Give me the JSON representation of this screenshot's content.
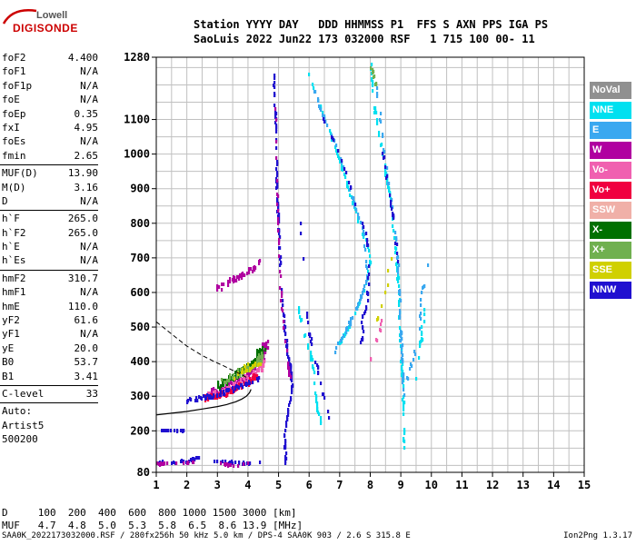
{
  "logo": {
    "top": "Lowell",
    "bottom": "DIGISONDE"
  },
  "header": {
    "line1": "Station YYYY DAY   DDD HHMMSS P1  FFS S AXN PPS IGA PS",
    "line2": "SaoLuis 2022 Jun22 173 032000 RSF   1 715 100 00- 11"
  },
  "params": [
    {
      "label": "foF2",
      "value": "4.400"
    },
    {
      "label": "foF1",
      "value": "N/A"
    },
    {
      "label": "foF1p",
      "value": "N/A"
    },
    {
      "label": "foE",
      "value": "N/A"
    },
    {
      "label": "foEp",
      "value": "0.35"
    },
    {
      "label": "fxI",
      "value": "4.95"
    },
    {
      "label": "foEs",
      "value": "N/A"
    },
    {
      "label": "fmin",
      "value": "2.65"
    },
    {
      "sep": true
    },
    {
      "label": "MUF(D)",
      "value": "13.90"
    },
    {
      "label": "M(D)",
      "value": "3.16"
    },
    {
      "label": "D",
      "value": "N/A"
    },
    {
      "sep": true
    },
    {
      "label": "h`F",
      "value": "265.0"
    },
    {
      "label": "h`F2",
      "value": "265.0"
    },
    {
      "label": "h`E",
      "value": "N/A"
    },
    {
      "label": "h`Es",
      "value": "N/A"
    },
    {
      "sep": true
    },
    {
      "label": "hmF2",
      "value": "310.7"
    },
    {
      "label": "hmF1",
      "value": "N/A"
    },
    {
      "label": "hmE",
      "value": "110.0"
    },
    {
      "label": "yF2",
      "value": "61.6"
    },
    {
      "label": "yF1",
      "value": "N/A"
    },
    {
      "label": "yE",
      "value": "20.0"
    },
    {
      "label": "B0",
      "value": "53.7"
    },
    {
      "label": "B1",
      "value": "3.41"
    },
    {
      "sep": true
    },
    {
      "label": "C-level",
      "value": "33"
    },
    {
      "sep": true
    }
  ],
  "auto": {
    "line1": "Auto:",
    "line2": "Artist5",
    "line3": "500200"
  },
  "legend": [
    {
      "label": "NoVal",
      "color": "#909090"
    },
    {
      "label": "NNE",
      "color": "#00e0f0"
    },
    {
      "label": "E",
      "color": "#3aa8f0"
    },
    {
      "label": "W",
      "color": "#b000a0"
    },
    {
      "label": "Vo-",
      "color": "#f060b0"
    },
    {
      "label": "Vo+",
      "color": "#f00040"
    },
    {
      "label": "SSW",
      "color": "#f0b0a8"
    },
    {
      "label": "X-",
      "color": "#007000"
    },
    {
      "label": "X+",
      "color": "#70b050"
    },
    {
      "label": "SSE",
      "color": "#d0d000"
    },
    {
      "label": "NNW",
      "color": "#2010d0"
    }
  ],
  "dtable": {
    "row1": "D     100  200  400  600  800 1000 1500 3000 [km]",
    "row2": "MUF   4.7  4.8  5.0  5.3  5.8  6.5  8.6 13.9 [MHz]"
  },
  "footer": {
    "left": "SAA0K_2022173032000.RSF / 280fx256h 50 kHz 5.0 km / DPS-4 SAA0K 903 / 2.6 S 315.8 E",
    "right": "Ion2Png 1.3.17"
  },
  "chart_data": {
    "type": "scatter",
    "x_range": [
      1,
      15
    ],
    "y_range": [
      80,
      1280
    ],
    "x_ticks": [
      "1",
      "2",
      "3",
      "4",
      "5",
      "6",
      "7",
      "8",
      "9",
      "10",
      "11",
      "12",
      "13",
      "14",
      "15"
    ],
    "y_ticks": [
      {
        "v": 80,
        "label": "80"
      },
      {
        "v": 200,
        "label": "200"
      },
      {
        "v": 300,
        "label": "300"
      },
      {
        "v": 400,
        "label": "400"
      },
      {
        "v": 500,
        "label": "500"
      },
      {
        "v": 600,
        "label": "600"
      },
      {
        "v": 700,
        "label": "700"
      },
      {
        "v": 800,
        "label": "800"
      },
      {
        "v": 900,
        "label": "900"
      },
      {
        "v": 1000,
        "label": "1000"
      },
      {
        "v": 1100,
        "label": "1100"
      },
      {
        "v": 1280,
        "label": "1280"
      }
    ],
    "y_gridlines": [
      100,
      150,
      250,
      350,
      450,
      550,
      650,
      750,
      850,
      950,
      1050,
      1150,
      1200,
      1250
    ],
    "grid": true,
    "profile_solid": [
      [
        1,
        246
      ],
      [
        1.5,
        251
      ],
      [
        2,
        256
      ],
      [
        2.5,
        263
      ],
      [
        3,
        270
      ],
      [
        3.3,
        276
      ],
      [
        3.6,
        284
      ],
      [
        3.8,
        292
      ],
      [
        3.95,
        300
      ],
      [
        4.05,
        310
      ],
      [
        4.1,
        320
      ]
    ],
    "profile_dashed": [
      [
        1,
        515
      ],
      [
        1.5,
        480
      ],
      [
        2,
        445
      ],
      [
        2.5,
        418
      ],
      [
        2.9,
        400
      ],
      [
        3.2,
        388
      ],
      [
        3.5,
        375
      ],
      [
        3.8,
        362
      ],
      [
        4.0,
        352
      ]
    ],
    "traces": [
      {
        "color": "#b000a0",
        "pts": [
          [
            2.8,
            310
          ],
          [
            3.0,
            315
          ],
          [
            3.2,
            320
          ],
          [
            3.4,
            330
          ],
          [
            3.6,
            340
          ],
          [
            3.8,
            350
          ],
          [
            4.0,
            365
          ],
          [
            4.2,
            380
          ],
          [
            4.4,
            400
          ],
          [
            4.5,
            420
          ],
          [
            4.55,
            440
          ],
          [
            4.6,
            460
          ]
        ],
        "spread": 22,
        "count": 140
      },
      {
        "color": "#f060b0",
        "pts": [
          [
            2.7,
            300
          ],
          [
            3.0,
            305
          ],
          [
            3.3,
            315
          ],
          [
            3.6,
            330
          ],
          [
            3.9,
            345
          ],
          [
            4.2,
            360
          ],
          [
            4.4,
            380
          ],
          [
            4.5,
            400
          ]
        ],
        "spread": 18,
        "count": 110
      },
      {
        "color": "#f00040",
        "pts": [
          [
            2.6,
            295
          ],
          [
            3.0,
            300
          ],
          [
            3.4,
            310
          ],
          [
            3.8,
            330
          ],
          [
            4.1,
            345
          ],
          [
            4.3,
            360
          ]
        ],
        "spread": 15,
        "count": 70
      },
      {
        "color": "#007000",
        "pts": [
          [
            3.0,
            330
          ],
          [
            3.4,
            350
          ],
          [
            3.8,
            370
          ],
          [
            4.1,
            390
          ],
          [
            4.3,
            410
          ],
          [
            4.5,
            440
          ]
        ],
        "spread": 20,
        "count": 80
      },
      {
        "color": "#70b050",
        "pts": [
          [
            3.2,
            340
          ],
          [
            3.6,
            360
          ],
          [
            4.0,
            380
          ],
          [
            4.3,
            400
          ],
          [
            4.5,
            425
          ]
        ],
        "spread": 18,
        "count": 50
      },
      {
        "color": "#2010d0",
        "pts": [
          [
            2.0,
            285
          ],
          [
            2.4,
            292
          ],
          [
            2.8,
            300
          ],
          [
            3.2,
            310
          ],
          [
            3.6,
            322
          ],
          [
            4.0,
            338
          ],
          [
            4.4,
            355
          ]
        ],
        "spread": 12,
        "count": 60
      },
      {
        "color": "#d0d000",
        "pts": [
          [
            3.5,
            350
          ],
          [
            4.0,
            380
          ],
          [
            4.4,
            400
          ]
        ],
        "spread": 20,
        "count": 25
      },
      {
        "color": "#b000a0",
        "pts": [
          [
            3.0,
            610
          ],
          [
            3.3,
            625
          ],
          [
            3.6,
            640
          ],
          [
            3.9,
            655
          ],
          [
            4.2,
            670
          ],
          [
            4.4,
            685
          ]
        ],
        "spread": 15,
        "count": 45
      },
      {
        "color": "#2010d0",
        "pts": [
          [
            4.85,
            1230
          ],
          [
            4.9,
            1120
          ],
          [
            4.95,
            1000
          ],
          [
            4.95,
            900
          ],
          [
            5.0,
            800
          ],
          [
            5.05,
            700
          ],
          [
            5.1,
            600
          ],
          [
            5.2,
            500
          ],
          [
            5.3,
            420
          ],
          [
            5.4,
            380
          ],
          [
            5.45,
            330
          ],
          [
            5.3,
            250
          ],
          [
            5.2,
            180
          ],
          [
            5.25,
            100
          ]
        ],
        "spread": 5,
        "count": 140
      },
      {
        "color": "#b000a0",
        "pts": [
          [
            4.9,
            1150
          ],
          [
            4.95,
            950
          ],
          [
            5.0,
            760
          ],
          [
            5.1,
            560
          ],
          [
            5.3,
            400
          ],
          [
            5.4,
            340
          ]
        ],
        "spread": 5,
        "count": 40
      },
      {
        "color": "#00e0f0",
        "pts": [
          [
            6.0,
            1230
          ],
          [
            6.3,
            1150
          ],
          [
            6.7,
            1060
          ],
          [
            7.0,
            980
          ],
          [
            7.3,
            900
          ],
          [
            7.6,
            810
          ],
          [
            7.9,
            740
          ],
          [
            8.0,
            680
          ],
          [
            7.8,
            600
          ],
          [
            7.5,
            540
          ],
          [
            7.3,
            500
          ],
          [
            7.0,
            450
          ]
        ],
        "spread": 6,
        "count": 90
      },
      {
        "color": "#3aa8f0",
        "pts": [
          [
            6.1,
            1200
          ],
          [
            6.5,
            1100
          ],
          [
            6.9,
            1020
          ],
          [
            7.2,
            940
          ],
          [
            7.5,
            850
          ],
          [
            7.8,
            770
          ],
          [
            7.9,
            640
          ],
          [
            7.6,
            560
          ],
          [
            7.1,
            470
          ],
          [
            6.8,
            420
          ]
        ],
        "spread": 6,
        "count": 70
      },
      {
        "color": "#2010d0",
        "pts": [
          [
            6.4,
            1110
          ],
          [
            6.8,
            1040
          ],
          [
            7.2,
            950
          ],
          [
            7.5,
            860
          ],
          [
            7.9,
            760
          ],
          [
            7.95,
            650
          ],
          [
            7.9,
            560
          ],
          [
            7.7,
            520
          ],
          [
            7.8,
            480
          ],
          [
            7.6,
            440
          ]
        ],
        "spread": 4,
        "count": 45
      },
      {
        "color": "#00e0f0",
        "pts": [
          [
            8.0,
            1280
          ],
          [
            8.1,
            1150
          ],
          [
            8.3,
            1050
          ],
          [
            8.5,
            950
          ],
          [
            8.7,
            850
          ],
          [
            8.8,
            750
          ],
          [
            8.9,
            650
          ],
          [
            8.95,
            550
          ],
          [
            9.0,
            450
          ],
          [
            9.05,
            350
          ],
          [
            9.1,
            250
          ],
          [
            9.1,
            150
          ]
        ],
        "spread": 6,
        "count": 110
      },
      {
        "color": "#3aa8f0",
        "pts": [
          [
            8.2,
            1200
          ],
          [
            8.4,
            1050
          ],
          [
            8.6,
            920
          ],
          [
            8.8,
            800
          ],
          [
            8.9,
            700
          ],
          [
            9.0,
            500
          ],
          [
            9.05,
            400
          ],
          [
            9.1,
            300
          ]
        ],
        "spread": 6,
        "count": 60
      },
      {
        "color": "#2010d0",
        "pts": [
          [
            8.4,
            1010
          ],
          [
            8.6,
            900
          ],
          [
            8.8,
            790
          ],
          [
            8.9,
            680
          ]
        ],
        "spread": 5,
        "count": 20
      },
      {
        "color": "#70b050",
        "pts": [
          [
            8.0,
            1260
          ],
          [
            8.2,
            1200
          ]
        ],
        "spread": 5,
        "count": 10
      },
      {
        "color": "#3aa8f0",
        "pts": [
          [
            9.2,
            350
          ],
          [
            9.4,
            400
          ],
          [
            9.6,
            500
          ],
          [
            9.7,
            600
          ],
          [
            9.9,
            700
          ]
        ],
        "spread": 8,
        "count": 20
      },
      {
        "color": "#00e0f0",
        "pts": [
          [
            9.4,
            300
          ],
          [
            9.6,
            420
          ],
          [
            9.8,
            550
          ]
        ],
        "spread": 10,
        "count": 15
      },
      {
        "color": "#2010d0",
        "pts": [
          [
            1.0,
            200
          ],
          [
            1.4,
            200
          ],
          [
            1.8,
            200
          ],
          [
            1.9,
            200
          ]
        ],
        "spread": 2,
        "count": 22
      },
      {
        "color": "#2010d0",
        "pts": [
          [
            1.0,
            110
          ],
          [
            1.5,
            108
          ],
          [
            2.0,
            112
          ],
          [
            2.2,
            118
          ],
          [
            2.4,
            120
          ]
        ],
        "spread": 6,
        "count": 30
      },
      {
        "color": "#b000a0",
        "pts": [
          [
            1.0,
            105
          ],
          [
            1.5,
            104
          ],
          [
            2.0,
            106
          ],
          [
            2.3,
            112
          ]
        ],
        "spread": 5,
        "count": 18
      },
      {
        "color": "#2010d0",
        "pts": [
          [
            2.8,
            110
          ],
          [
            3.2,
            110
          ],
          [
            3.6,
            108
          ],
          [
            4.0,
            105
          ],
          [
            4.4,
            110
          ]
        ],
        "spread": 6,
        "count": 22
      },
      {
        "color": "#b000a0",
        "pts": [
          [
            3.0,
            105
          ],
          [
            3.5,
            100
          ],
          [
            4.0,
            104
          ]
        ],
        "spread": 5,
        "count": 12
      },
      {
        "color": "#00e0f0",
        "pts": [
          [
            5.5,
            600
          ],
          [
            5.8,
            500
          ],
          [
            6.1,
            400
          ],
          [
            6.2,
            320
          ],
          [
            6.3,
            250
          ],
          [
            6.5,
            200
          ]
        ],
        "spread": 8,
        "count": 35
      },
      {
        "color": "#2010d0",
        "pts": [
          [
            5.6,
            900
          ],
          [
            5.8,
            700
          ],
          [
            6.0,
            500
          ],
          [
            6.2,
            400
          ],
          [
            6.5,
            300
          ],
          [
            6.8,
            200
          ]
        ],
        "spread": 10,
        "count": 25
      },
      {
        "color": "#d0d000",
        "pts": [
          [
            8.2,
            500
          ],
          [
            8.5,
            600
          ],
          [
            8.7,
            700
          ]
        ],
        "spread": 10,
        "count": 8
      },
      {
        "color": "#f060b0",
        "pts": [
          [
            8.0,
            400
          ],
          [
            8.2,
            460
          ],
          [
            8.4,
            520
          ]
        ],
        "spread": 8,
        "count": 8
      }
    ]
  }
}
